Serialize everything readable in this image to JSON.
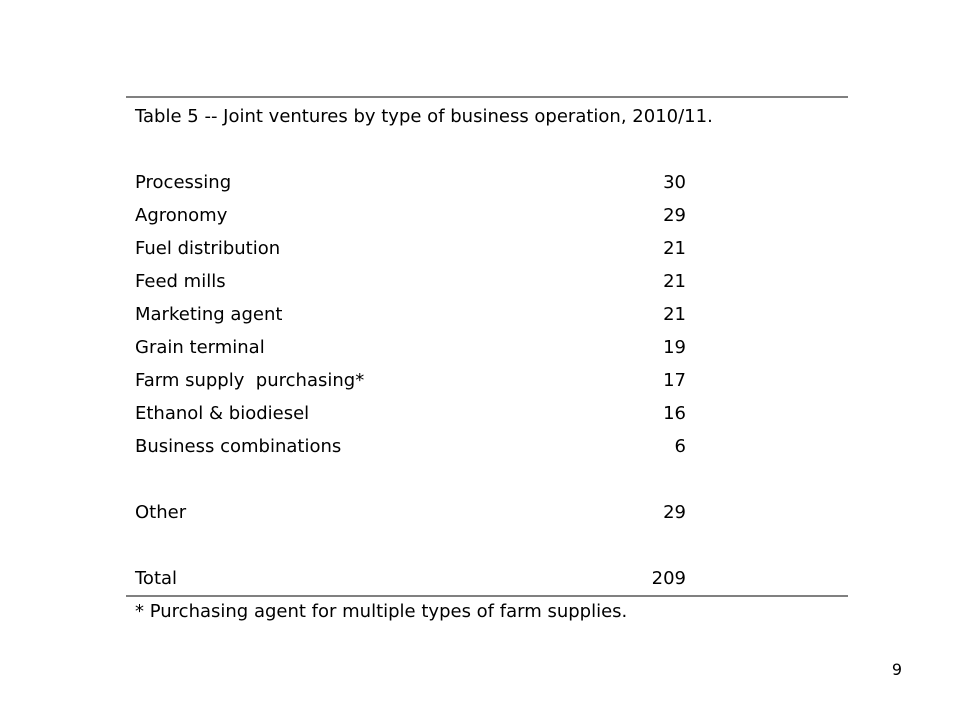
{
  "table": {
    "caption": "Table 5 -- Joint ventures by type of business operation, 2010/11.",
    "rows": [
      {
        "label": "Processing",
        "value": "30"
      },
      {
        "label": "Agronomy",
        "value": "29"
      },
      {
        "label": "Fuel distribution",
        "value": "21"
      },
      {
        "label": "Feed mills",
        "value": "21"
      },
      {
        "label": "Marketing agent",
        "value": "21"
      },
      {
        "label": "Grain terminal",
        "value": "19"
      },
      {
        "label": "Farm supply  purchasing*",
        "value": "17"
      },
      {
        "label": "Ethanol & biodiesel",
        "value": "16"
      },
      {
        "label": "Business combinations",
        "value": "6"
      }
    ],
    "other": {
      "label": "Other",
      "value": "29"
    },
    "total": {
      "label": "Total",
      "value": "209"
    },
    "footnote": "* Purchasing agent for multiple types of farm supplies."
  },
  "page_number": "9"
}
